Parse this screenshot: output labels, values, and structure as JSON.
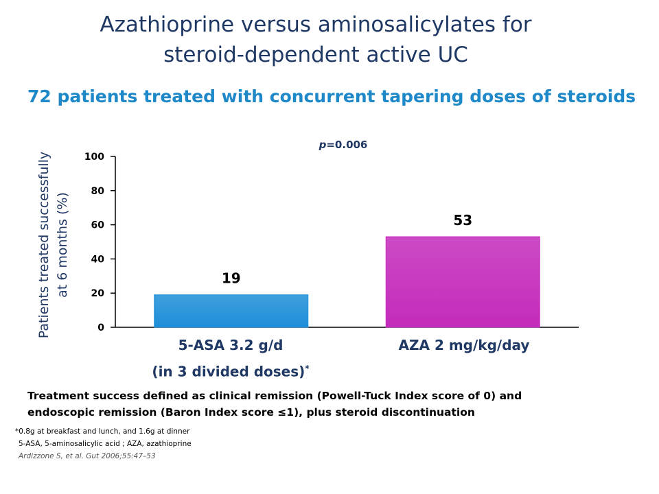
{
  "title_line1": "Azathioprine versus aminosalicylates for",
  "title_line2": "steroid-dependent active UC",
  "subtitle": "72 patients treated with concurrent tapering doses of steroids",
  "chart_data": {
    "type": "bar",
    "categories": [
      "5-ASA 3.2 g/d",
      "AZA 2 mg/kg/day"
    ],
    "category_sublabel": "(in 3 divided doses)",
    "category_sublabel_mark": "*",
    "values": [
      19,
      53
    ],
    "data_labels": [
      "19",
      "53"
    ],
    "colors": [
      "#1e8ed8",
      "#c42bbb"
    ],
    "ylabel_line1": "Patients treated successfully",
    "ylabel_line2": "at 6 months (%)",
    "xlabel": "",
    "ylim": [
      0,
      100
    ],
    "yticks": [
      0,
      20,
      40,
      60,
      80,
      100
    ],
    "ytick_labels": [
      "0",
      "20",
      "40",
      "60",
      "80",
      "100"
    ],
    "annotation": "p=0.006"
  },
  "definition_line1": "Treatment success defined as clinical remission (Powell-Tuck Index score of 0) and",
  "definition_line2": "endoscopic remission (Baron Index score ≤1), plus steroid discontinuation",
  "footnote1": "*0.8g at breakfast and lunch, and 1.6g at dinner",
  "footnote2": "5-ASA, 5-aminosalicylic acid ; AZA, azathioprine",
  "reference": "Ardizzone S, et al. Gut 2006;55:47–53"
}
